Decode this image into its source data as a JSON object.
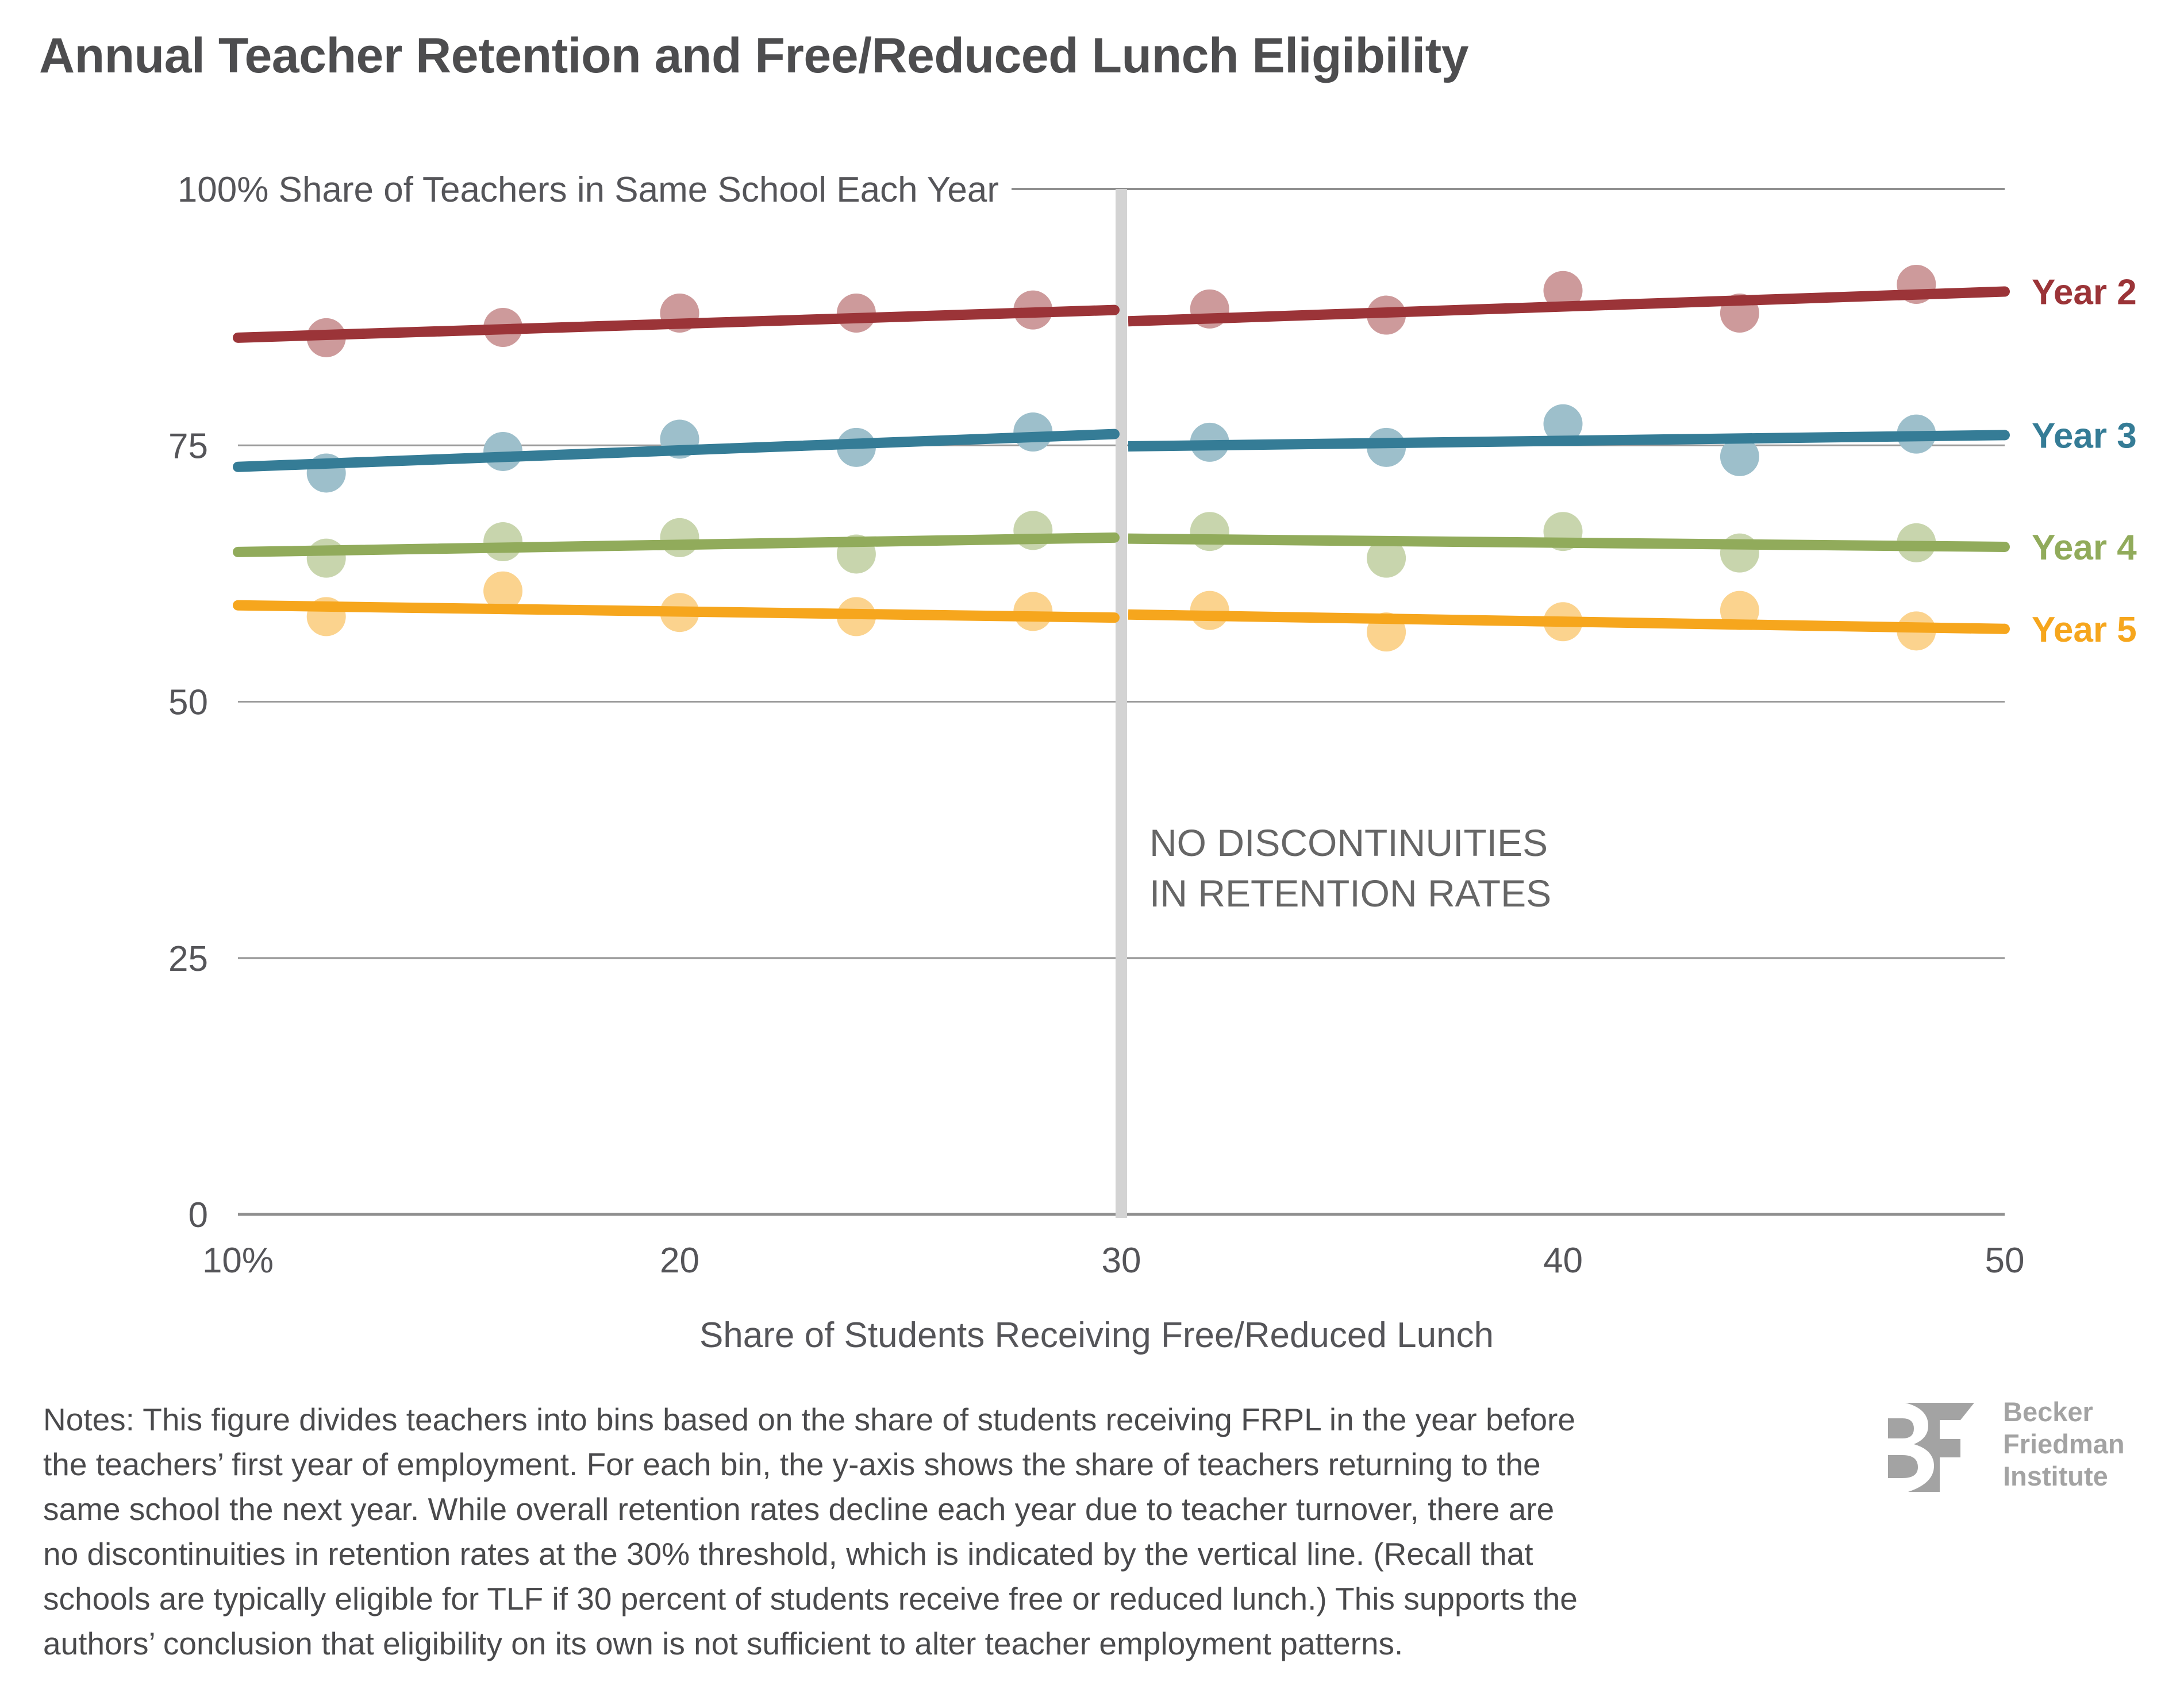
{
  "title": "Annual Teacher Retention and Free/Reduced Lunch Eligibility",
  "chart_data": {
    "type": "scatter",
    "title": "Annual Teacher Retention and Free/Reduced Lunch Eligibility",
    "ylabel": "100% Share of Teachers in Same School Each Year",
    "xlabel": "Share of Students Receiving Free/Reduced Lunch",
    "xlim": [
      10,
      50
    ],
    "ylim": [
      0,
      100
    ],
    "x_ticks": [
      10,
      20,
      30,
      40,
      50
    ],
    "x_tick_labels": [
      "10%",
      "20",
      "30",
      "40",
      "50"
    ],
    "y_ticks": [
      0,
      25,
      50,
      75,
      100
    ],
    "y_tick_labels": [
      "0",
      "25",
      "50",
      "75",
      "100%"
    ],
    "grid": "horizontal",
    "threshold": {
      "x": 30,
      "label": [
        "NO DISCONTINUITIES",
        "IN RETENTION RATES"
      ]
    },
    "x": [
      12,
      16,
      20,
      24,
      28,
      32,
      36,
      40,
      44,
      48
    ],
    "series": [
      {
        "name": "Year 2",
        "color": "#9b3438",
        "point_color": "#cd9a9b",
        "values": [
          85.5,
          86.5,
          87.9,
          87.9,
          88.2,
          88.3,
          87.7,
          90.1,
          87.9,
          90.7
        ],
        "fit_left": [
          [
            10,
            85.5
          ],
          [
            30,
            88.2
          ]
        ],
        "fit_right": [
          [
            30,
            87.1
          ],
          [
            50,
            90.0
          ]
        ]
      },
      {
        "name": "Year 3",
        "color": "#357c96",
        "point_color": "#9dbfcb",
        "values": [
          72.3,
          74.4,
          75.6,
          74.8,
          76.3,
          75.3,
          74.8,
          77.1,
          73.9,
          76.1
        ],
        "fit_left": [
          [
            10,
            72.9
          ],
          [
            30,
            76.1
          ]
        ],
        "fit_right": [
          [
            30,
            74.9
          ],
          [
            50,
            76.0
          ]
        ]
      },
      {
        "name": "Year 4",
        "color": "#91ab5b",
        "point_color": "#c8d5ad",
        "values": [
          64.0,
          65.6,
          66.0,
          64.4,
          66.7,
          66.6,
          64.0,
          66.6,
          64.5,
          65.5
        ],
        "fit_left": [
          [
            10,
            64.6
          ],
          [
            30,
            66.0
          ]
        ],
        "fit_right": [
          [
            30,
            65.9
          ],
          [
            50,
            65.1
          ]
        ]
      },
      {
        "name": "Year 5",
        "color": "#f6a61d",
        "point_color": "#fbd38e",
        "values": [
          58.3,
          60.8,
          58.7,
          58.3,
          58.8,
          58.9,
          56.8,
          57.8,
          58.9,
          56.9
        ],
        "fit_left": [
          [
            10,
            59.4
          ],
          [
            30,
            58.2
          ]
        ],
        "fit_right": [
          [
            30,
            58.5
          ],
          [
            50,
            57.1
          ]
        ]
      }
    ]
  },
  "notes": [
    "Notes: This figure divides teachers into bins based on the share of students receiving FRPL in the year before",
    "the teachers’ first year of employment. For each bin, the y-axis shows the share of teachers returning to the",
    "same school the next year. While overall retention rates decline each year due to teacher turnover, there are",
    "no discontinuities in retention rates at the 30% threshold, which is indicated by the vertical line. (Recall that",
    "schools are typically eligible for TLF if 30 percent of students receive free or reduced lunch.) This supports the",
    "authors’ conclusion that eligibility on its own is not sufficient to alter teacher employment patterns."
  ],
  "logo": {
    "lines": [
      "Becker",
      "Friedman",
      "Institute"
    ],
    "color": "#a3a3a3"
  }
}
